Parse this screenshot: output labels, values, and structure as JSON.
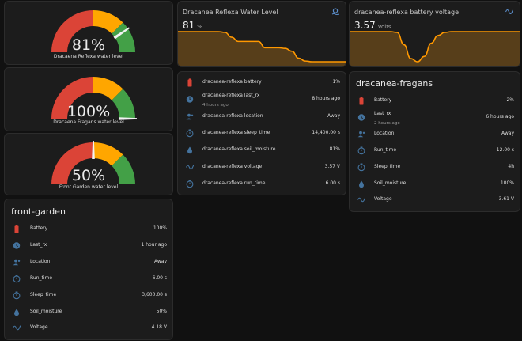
{
  "colors": {
    "accent": "#44739e",
    "danger": "#db4437",
    "warning": "#ffa600",
    "success": "#43a047",
    "graph": "#ff9800",
    "background": "#111111",
    "card": "#1c1c1c"
  },
  "gauges": [
    {
      "value": 81,
      "display": "81%",
      "name": "Dracaena Reflexa water level"
    },
    {
      "value": 100,
      "display": "100%",
      "name": "Dracaena Fragans water level"
    },
    {
      "value": 50,
      "display": "50%",
      "name": "Front Garden water level"
    }
  ],
  "sensor_cards": [
    {
      "title": "Dracanea Reflexa Water Level",
      "value": "81",
      "unit": "%",
      "icon": "water-level-icon"
    },
    {
      "title": "dracanea-reflexa battery voltage",
      "value": "3.57",
      "unit": "Volts",
      "icon": "sine-wave-icon"
    }
  ],
  "chart_data": [
    {
      "type": "area",
      "title": "Dracanea Reflexa Water Level",
      "series": [
        {
          "values": [
            48,
            48,
            48,
            48,
            48,
            48,
            48,
            47,
            40,
            34,
            34,
            34,
            34,
            25,
            25,
            25,
            24,
            20,
            10,
            6,
            5,
            5,
            5,
            5,
            5,
            5
          ]
        }
      ]
    },
    {
      "type": "area",
      "title": "dracanea-reflexa battery voltage",
      "series": [
        {
          "values": [
            3.97,
            3.97,
            3.97,
            3.97,
            3.97,
            3.97,
            3.97,
            3.96,
            3.8,
            3.62,
            3.58,
            3.65,
            3.82,
            3.92,
            3.96,
            3.97,
            3.97,
            3.97,
            3.97,
            3.97,
            3.97,
            3.97,
            3.97,
            3.97,
            3.97,
            3.97
          ]
        }
      ]
    }
  ],
  "reflexa_entities": [
    {
      "icon": "battery-icon",
      "name": "dracanea-reflexa battery",
      "value": "1%"
    },
    {
      "icon": "clock-icon",
      "name": "dracanea-reflexa last_rx",
      "secondary": "4 hours ago",
      "value": "8 hours ago"
    },
    {
      "icon": "account-location-icon",
      "name": "dracanea-reflexa location",
      "value": "Away"
    },
    {
      "icon": "timer-icon",
      "name": "dracanea-reflexa sleep_time",
      "value": "14,400.00 s"
    },
    {
      "icon": "water-drop-icon",
      "name": "dracanea-reflexa soil_moisture",
      "value": "81%"
    },
    {
      "icon": "sine-wave-icon",
      "name": "dracanea-reflexa voltage",
      "value": "3.57 V"
    },
    {
      "icon": "timer-icon",
      "name": "dracanea-reflexa run_time",
      "value": "6.00 s"
    }
  ],
  "fragans_card": {
    "title": "dracanea-fragans",
    "entities": [
      {
        "icon": "battery-icon",
        "name": "Battery",
        "value": "2%"
      },
      {
        "icon": "clock-icon",
        "name": "Last_rx",
        "secondary": "2 hours ago",
        "value": "6 hours ago"
      },
      {
        "icon": "account-location-icon",
        "name": "Location",
        "value": "Away"
      },
      {
        "icon": "timer-icon",
        "name": "Run_time",
        "value": "12.00 s"
      },
      {
        "icon": "timer-icon",
        "name": "Sleep_time",
        "value": "4h"
      },
      {
        "icon": "water-drop-icon",
        "name": "Soil_moisture",
        "value": "100%"
      },
      {
        "icon": "sine-wave-icon",
        "name": "Voltage",
        "value": "3.61 V"
      }
    ]
  },
  "front_garden_card": {
    "title": "front-garden",
    "entities": [
      {
        "icon": "battery-icon",
        "name": "Battery",
        "value": "100%"
      },
      {
        "icon": "clock-icon",
        "name": "Last_rx",
        "value": "1 hour ago"
      },
      {
        "icon": "account-location-icon",
        "name": "Location",
        "value": "Away"
      },
      {
        "icon": "timer-icon",
        "name": "Run_time",
        "value": "6.00 s"
      },
      {
        "icon": "timer-icon",
        "name": "Sleep_time",
        "value": "3,600.00 s"
      },
      {
        "icon": "water-drop-icon",
        "name": "Soil_moisture",
        "value": "50%"
      },
      {
        "icon": "sine-wave-icon",
        "name": "Voltage",
        "value": "4.18 V"
      }
    ]
  }
}
